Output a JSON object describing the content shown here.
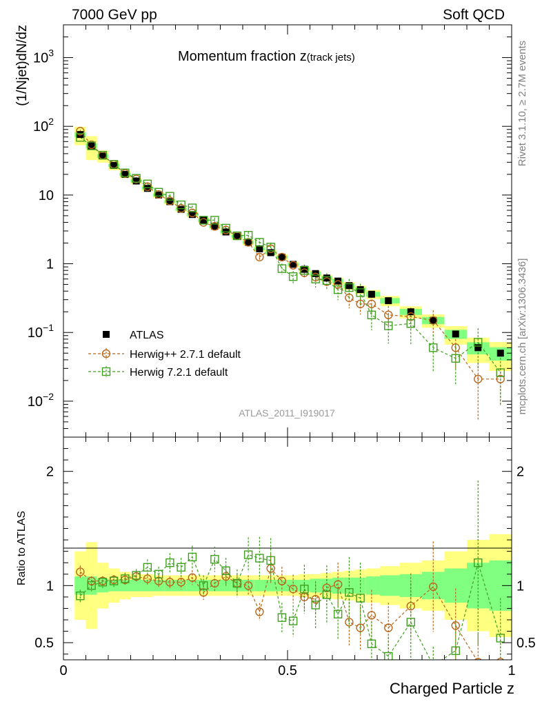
{
  "header": {
    "left": "7000 GeV pp",
    "right": "Soft QCD"
  },
  "side": {
    "rivet": "Rivet 3.1.10, ≥ 2.7M events",
    "mcplots": "mcplots.cern.ch [arXiv:1306.3436]"
  },
  "chart_data": [
    {
      "type": "scatter",
      "title": "Momentum fraction z",
      "title_sub": "(track jets)",
      "ylabel": "(1/Njet)dN/dz",
      "analysis": "ATLAS_2011_I919017",
      "yscale": "log",
      "ylim": [
        0.003,
        3000
      ],
      "xlim": [
        0,
        1
      ],
      "y_tick_labels": [
        {
          "value": 1000,
          "base": "10",
          "exp": "3"
        },
        {
          "value": 100,
          "base": "10",
          "exp": "2"
        },
        {
          "value": 10,
          "base": "10",
          "exp": ""
        },
        {
          "value": 1,
          "base": "1",
          "exp": ""
        },
        {
          "value": 0.1,
          "base": "10",
          "exp": "−1"
        },
        {
          "value": 0.01,
          "base": "10",
          "exp": "−2"
        }
      ],
      "x": [
        0.0375,
        0.0625,
        0.0875,
        0.1125,
        0.1375,
        0.1625,
        0.1875,
        0.2125,
        0.2375,
        0.2625,
        0.2875,
        0.3125,
        0.3375,
        0.3625,
        0.3875,
        0.4125,
        0.4375,
        0.4625,
        0.4875,
        0.5125,
        0.5375,
        0.5625,
        0.5875,
        0.6125,
        0.6375,
        0.6625,
        0.6875,
        0.725,
        0.775,
        0.825,
        0.875,
        0.925,
        0.975
      ],
      "series": [
        {
          "name": "ATLAS",
          "style": "data",
          "color": "#000000",
          "values": [
            76,
            52,
            37,
            27,
            20,
            16,
            12.5,
            10,
            8,
            6.2,
            5.2,
            4.3,
            3.5,
            2.9,
            2.5,
            2.05,
            1.65,
            1.45,
            1.25,
            0.98,
            0.83,
            0.72,
            0.62,
            0.56,
            0.48,
            0.42,
            0.36,
            0.29,
            0.2,
            0.15,
            0.095,
            0.06,
            0.05
          ],
          "band_green": [
            0.08,
            0.08,
            0.06,
            0.05,
            0.05,
            0.05,
            0.05,
            0.05,
            0.05,
            0.05,
            0.05,
            0.05,
            0.05,
            0.05,
            0.05,
            0.05,
            0.05,
            0.05,
            0.05,
            0.05,
            0.05,
            0.06,
            0.06,
            0.07,
            0.07,
            0.07,
            0.08,
            0.09,
            0.1,
            0.12,
            0.15,
            0.2,
            0.22
          ],
          "band_yellow": [
            0.3,
            0.38,
            0.2,
            0.15,
            0.12,
            0.1,
            0.1,
            0.09,
            0.09,
            0.09,
            0.09,
            0.09,
            0.09,
            0.09,
            0.09,
            0.09,
            0.09,
            0.09,
            0.09,
            0.09,
            0.1,
            0.1,
            0.11,
            0.12,
            0.13,
            0.14,
            0.15,
            0.17,
            0.2,
            0.22,
            0.3,
            0.4,
            0.45
          ]
        },
        {
          "name": "Herwig++ 2.7.1 default",
          "style": "circle",
          "color": "#b8651b",
          "values": [
            85,
            54,
            38,
            28,
            20.6,
            17.1,
            13.2,
            10.2,
            8.2,
            6.4,
            5.5,
            4.0,
            3.5,
            3.1,
            2.55,
            2.05,
            1.25,
            1.65,
            1.25,
            0.95,
            0.74,
            0.64,
            0.55,
            0.5,
            0.32,
            0.26,
            0.26,
            0.18,
            0.17,
            0.15,
            0.06,
            0.021,
            0.021
          ],
          "err": [
            0.05,
            0.04,
            0.04,
            0.04,
            0.04,
            0.04,
            0.05,
            0.05,
            0.05,
            0.06,
            0.06,
            0.07,
            0.07,
            0.08,
            0.08,
            0.09,
            0.1,
            0.11,
            0.12,
            0.13,
            0.14,
            0.15,
            0.17,
            0.19,
            0.3,
            0.3,
            0.3,
            0.35,
            0.35,
            0.4,
            0.5,
            0.75,
            0.6
          ],
          "ratio": [
            1.12,
            1.04,
            1.04,
            1.05,
            1.05,
            1.08,
            1.06,
            1.04,
            1.03,
            1.03,
            1.07,
            0.94,
            1.02,
            1.08,
            1.02,
            1.0,
            0.77,
            1.15,
            1.04,
            0.97,
            0.9,
            0.88,
            0.98,
            1.01,
            0.68,
            0.63,
            0.74,
            0.63,
            0.82,
            0.99,
            0.65,
            0.33,
            0.33
          ]
        },
        {
          "name": "Herwig 7.2.1 default",
          "style": "square",
          "color": "#3f9f1f",
          "values": [
            69,
            52,
            38,
            28,
            21,
            17.5,
            14.5,
            11,
            9.6,
            7.2,
            6.5,
            4.3,
            4.3,
            3.3,
            2.55,
            2.6,
            2.05,
            1.75,
            0.85,
            0.65,
            0.8,
            0.6,
            0.57,
            0.42,
            0.45,
            0.38,
            0.18,
            0.125,
            0.135,
            0.06,
            0.042,
            0.072,
            0.026
          ],
          "err": [
            0.06,
            0.05,
            0.05,
            0.05,
            0.05,
            0.05,
            0.06,
            0.06,
            0.07,
            0.07,
            0.08,
            0.09,
            0.09,
            0.1,
            0.12,
            0.12,
            0.15,
            0.16,
            0.18,
            0.2,
            0.22,
            0.25,
            0.28,
            0.3,
            0.33,
            0.35,
            0.4,
            0.45,
            0.5,
            0.55,
            0.6,
            0.6,
            0.65
          ],
          "ratio": [
            0.91,
            1.0,
            1.03,
            1.04,
            1.06,
            1.09,
            1.16,
            1.1,
            1.2,
            1.16,
            1.25,
            1.0,
            1.23,
            1.13,
            1.02,
            1.27,
            1.24,
            1.22,
            0.72,
            0.69,
            0.97,
            0.83,
            0.92,
            0.75,
            0.94,
            0.89,
            0.49,
            0.38,
            0.68,
            0.3,
            0.43,
            1.2,
            0.54
          ]
        }
      ],
      "legend_position": "lower-left"
    },
    {
      "type": "scatter",
      "xlabel": "Charged Particle z",
      "ylabel": "Ratio to ATLAS",
      "ylim": [
        0.35,
        2.3
      ],
      "xlim": [
        0,
        1
      ],
      "y_ticks": [
        0.5,
        1,
        2
      ],
      "y_tick_labels": [
        "0.5",
        "1",
        "2"
      ],
      "x_ticks": [
        0,
        0.5,
        1
      ],
      "x_tick_labels": [
        "0",
        "0.5",
        "1"
      ]
    }
  ]
}
